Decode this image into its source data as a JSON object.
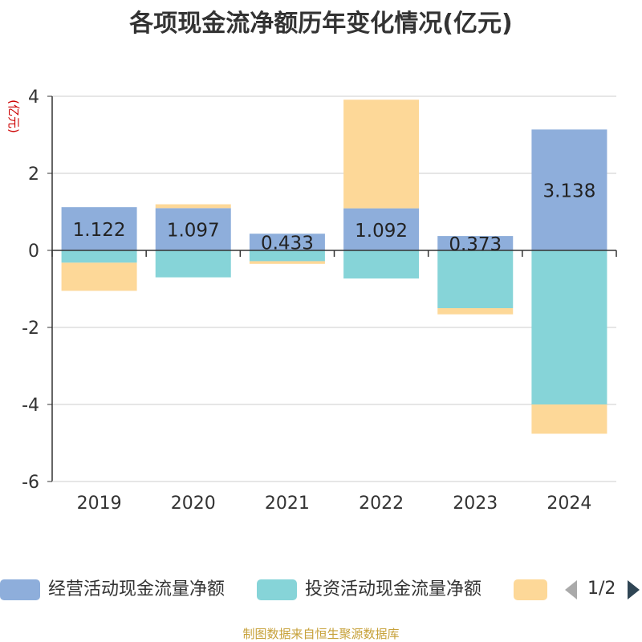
{
  "title": "各项现金流净额历年变化情况(亿元)",
  "source_text": "制图数据来自恒生聚源数据库",
  "legend": {
    "items": [
      {
        "label": "经营活动现金流量净额",
        "color": "#8eaedb"
      },
      {
        "label": "投资活动现金流量净额",
        "color": "#86d4d8"
      },
      {
        "label": "",
        "color": "#fdd898"
      }
    ],
    "page_text": "1/2"
  },
  "chart_data": {
    "type": "bar",
    "stacked": true,
    "categories": [
      "2019",
      "2020",
      "2021",
      "2022",
      "2023",
      "2024"
    ],
    "ylabel": "(亿元)",
    "ylim": [
      -6,
      4
    ],
    "yticks": [
      -6,
      -4,
      -2,
      0,
      2,
      4
    ],
    "grid": true,
    "legend_position": "bottom",
    "series": [
      {
        "name": "经营活动现金流量净额",
        "color": "#8eaedb",
        "values": [
          1.122,
          1.097,
          0.433,
          1.092,
          0.373,
          3.138
        ],
        "labels": [
          "1.122",
          "1.097",
          "0.433",
          "1.092",
          "0.373",
          "3.138"
        ]
      },
      {
        "name": "投资活动现金流量净额",
        "color": "#86d4d8",
        "values": [
          -0.32,
          -0.7,
          -0.28,
          -0.73,
          -1.5,
          -4.0
        ]
      },
      {
        "color": "#fdd898",
        "values": [
          -0.73,
          0.1,
          -0.07,
          2.82,
          -0.16,
          -0.76
        ]
      }
    ]
  }
}
